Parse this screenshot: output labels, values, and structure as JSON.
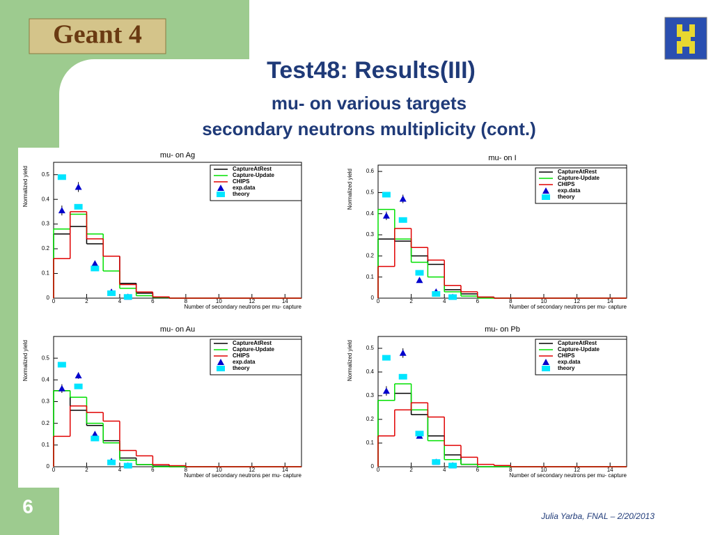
{
  "slide": {
    "logo_text": "Geant 4",
    "title": "Test48: Results(III)",
    "subtitle_1": "mu- on various targets",
    "subtitle_2": "secondary neutrons multiplicity (cont.)",
    "page_number": "6",
    "footer": "Julia Yarba, FNAL – 2/20/2013"
  },
  "chart_data": [
    {
      "type": "histogram",
      "title": "mu- on Ag",
      "x_label": "Number of secondary neutrons per mu- capture",
      "y_label": "Normalized yield",
      "legend": "upper right",
      "bins": [
        0,
        1,
        2,
        3,
        4,
        5,
        6,
        7,
        8,
        9,
        10,
        11,
        12,
        13,
        14,
        15
      ],
      "xlim": [
        0,
        15
      ],
      "ylim": [
        0,
        0.55
      ],
      "xticks": [
        0,
        2,
        4,
        6,
        8,
        10,
        12,
        14
      ],
      "yticks": [
        0,
        0.1,
        0.2,
        0.3,
        0.4,
        0.5
      ],
      "series": [
        {
          "name": "CaptureAtRest",
          "color": "#000000",
          "values": [
            0.26,
            0.29,
            0.22,
            0.17,
            0.06,
            0.02,
            0.005,
            0,
            0,
            0,
            0,
            0,
            0,
            0,
            0
          ]
        },
        {
          "name": "Capture-Update",
          "color": "#00e000",
          "values": [
            0.28,
            0.34,
            0.26,
            0.11,
            0.04,
            0.01,
            0.003,
            0,
            0,
            0,
            0,
            0,
            0,
            0,
            0
          ]
        },
        {
          "name": "CHIPS",
          "color": "#e00000",
          "values": [
            0.16,
            0.35,
            0.24,
            0.17,
            0.055,
            0.025,
            0.005,
            0,
            0,
            0,
            0,
            0,
            0,
            0,
            0
          ]
        },
        {
          "name": "exp.data",
          "type": "scatter",
          "marker": "triangle",
          "color": "#0000cc",
          "x": [
            0.5,
            1.5,
            2.5,
            3.5,
            4.5
          ],
          "values": [
            0.355,
            0.45,
            0.14,
            0.025,
            0.005
          ],
          "errors": [
            0.02,
            0.02,
            0.01,
            0.005,
            0.003
          ]
        },
        {
          "name": "theory",
          "type": "scatter",
          "marker": "square",
          "color": "#00e5ff",
          "x": [
            0.5,
            1.5,
            2.5,
            3.5,
            4.5
          ],
          "values": [
            0.49,
            0.37,
            0.12,
            0.02,
            0.005
          ]
        }
      ]
    },
    {
      "type": "histogram",
      "title": "mu- on I",
      "x_label": "Number of secondary neutrons per mu- capture",
      "y_label": "Normalized yield",
      "legend": "upper right",
      "bins": [
        0,
        1,
        2,
        3,
        4,
        5,
        6,
        7,
        8,
        9,
        10,
        11,
        12,
        13,
        14,
        15
      ],
      "xlim": [
        0,
        15
      ],
      "ylim": [
        0,
        0.63
      ],
      "xticks": [
        0,
        2,
        4,
        6,
        8,
        10,
        12,
        14
      ],
      "yticks": [
        0,
        0.1,
        0.2,
        0.3,
        0.4,
        0.5,
        0.6
      ],
      "series": [
        {
          "name": "CaptureAtRest",
          "color": "#000000",
          "values": [
            0.28,
            0.27,
            0.2,
            0.16,
            0.04,
            0.02,
            0.005,
            0,
            0,
            0,
            0,
            0,
            0,
            0,
            0
          ]
        },
        {
          "name": "Capture-Update",
          "color": "#00e000",
          "values": [
            0.42,
            0.28,
            0.17,
            0.1,
            0.03,
            0.01,
            0,
            0,
            0,
            0,
            0,
            0,
            0,
            0,
            0
          ]
        },
        {
          "name": "CHIPS",
          "color": "#e00000",
          "values": [
            0.15,
            0.33,
            0.24,
            0.18,
            0.06,
            0.03,
            0.005,
            0,
            0,
            0,
            0,
            0,
            0,
            0,
            0
          ]
        },
        {
          "name": "exp.data",
          "type": "scatter",
          "marker": "triangle",
          "color": "#0000cc",
          "x": [
            0.5,
            1.5,
            2.5,
            3.5,
            4.5
          ],
          "values": [
            0.39,
            0.47,
            0.085,
            0.03,
            0.005
          ],
          "errors": [
            0.02,
            0.02,
            0.01,
            0.005,
            0.003
          ]
        },
        {
          "name": "theory",
          "type": "scatter",
          "marker": "square",
          "color": "#00e5ff",
          "x": [
            0.5,
            1.5,
            2.5,
            3.5,
            4.5
          ],
          "values": [
            0.49,
            0.37,
            0.12,
            0.02,
            0.005
          ]
        }
      ]
    },
    {
      "type": "histogram",
      "title": "mu- on Au",
      "x_label": "Number of secondary neutrons per mu- capture",
      "y_label": "Normalized yield",
      "legend": "upper right",
      "bins": [
        0,
        1,
        2,
        3,
        4,
        5,
        6,
        7,
        8,
        9,
        10,
        11,
        12,
        13,
        14,
        15
      ],
      "xlim": [
        0,
        15
      ],
      "ylim": [
        0,
        0.6
      ],
      "xticks": [
        0,
        2,
        4,
        6,
        8,
        10,
        12,
        14
      ],
      "yticks": [
        0,
        0.1,
        0.2,
        0.3,
        0.4,
        0.5
      ],
      "series": [
        {
          "name": "CaptureAtRest",
          "color": "#000000",
          "values": [
            0.35,
            0.26,
            0.19,
            0.12,
            0.04,
            0.01,
            0.003,
            0,
            0,
            0,
            0,
            0,
            0,
            0,
            0
          ]
        },
        {
          "name": "Capture-Update",
          "color": "#00e000",
          "values": [
            0.35,
            0.32,
            0.2,
            0.11,
            0.03,
            0.01,
            0,
            0,
            0,
            0,
            0,
            0,
            0,
            0,
            0
          ]
        },
        {
          "name": "CHIPS",
          "color": "#e00000",
          "values": [
            0.14,
            0.28,
            0.25,
            0.21,
            0.075,
            0.05,
            0.01,
            0.005,
            0,
            0,
            0,
            0,
            0,
            0,
            0
          ]
        },
        {
          "name": "exp.data",
          "type": "scatter",
          "marker": "triangle",
          "color": "#0000cc",
          "x": [
            0.5,
            1.5,
            2.5,
            3.5,
            4.5
          ],
          "values": [
            0.36,
            0.42,
            0.15,
            0.025,
            0.005
          ],
          "errors": [
            0.02,
            0.015,
            0.01,
            0.005,
            0.003
          ]
        },
        {
          "name": "theory",
          "type": "scatter",
          "marker": "square",
          "color": "#00e5ff",
          "x": [
            0.5,
            1.5,
            2.5,
            3.5,
            4.5
          ],
          "values": [
            0.47,
            0.37,
            0.13,
            0.02,
            0.005
          ]
        }
      ]
    },
    {
      "type": "histogram",
      "title": "mu- on Pb",
      "x_label": "Number of secondary neutrons per mu- capture",
      "y_label": "Normalized yield",
      "legend": "upper right",
      "bins": [
        0,
        1,
        2,
        3,
        4,
        5,
        6,
        7,
        8,
        9,
        10,
        11,
        12,
        13,
        14,
        15
      ],
      "xlim": [
        0,
        15
      ],
      "ylim": [
        0,
        0.55
      ],
      "xticks": [
        0,
        2,
        4,
        6,
        8,
        10,
        12,
        14
      ],
      "yticks": [
        0,
        0.1,
        0.2,
        0.3,
        0.4,
        0.5
      ],
      "series": [
        {
          "name": "CaptureAtRest",
          "color": "#000000",
          "values": [
            0.28,
            0.31,
            0.22,
            0.13,
            0.05,
            0.01,
            0,
            0,
            0,
            0,
            0,
            0,
            0,
            0,
            0
          ]
        },
        {
          "name": "Capture-Update",
          "color": "#00e000",
          "values": [
            0.28,
            0.35,
            0.24,
            0.11,
            0.03,
            0.01,
            0,
            0,
            0,
            0,
            0,
            0,
            0,
            0,
            0
          ]
        },
        {
          "name": "CHIPS",
          "color": "#e00000",
          "values": [
            0.13,
            0.24,
            0.27,
            0.21,
            0.09,
            0.04,
            0.01,
            0.005,
            0,
            0,
            0,
            0,
            0,
            0,
            0
          ]
        },
        {
          "name": "exp.data",
          "type": "scatter",
          "marker": "triangle",
          "color": "#0000cc",
          "x": [
            0.5,
            1.5,
            2.5,
            3.5,
            4.5
          ],
          "values": [
            0.32,
            0.48,
            0.13,
            0.02,
            0.005
          ],
          "errors": [
            0.02,
            0.02,
            0.01,
            0.005,
            0.003
          ]
        },
        {
          "name": "theory",
          "type": "scatter",
          "marker": "square",
          "color": "#00e5ff",
          "x": [
            0.5,
            1.5,
            2.5,
            3.5,
            4.5
          ],
          "values": [
            0.46,
            0.38,
            0.14,
            0.02,
            0.005
          ]
        }
      ]
    }
  ]
}
